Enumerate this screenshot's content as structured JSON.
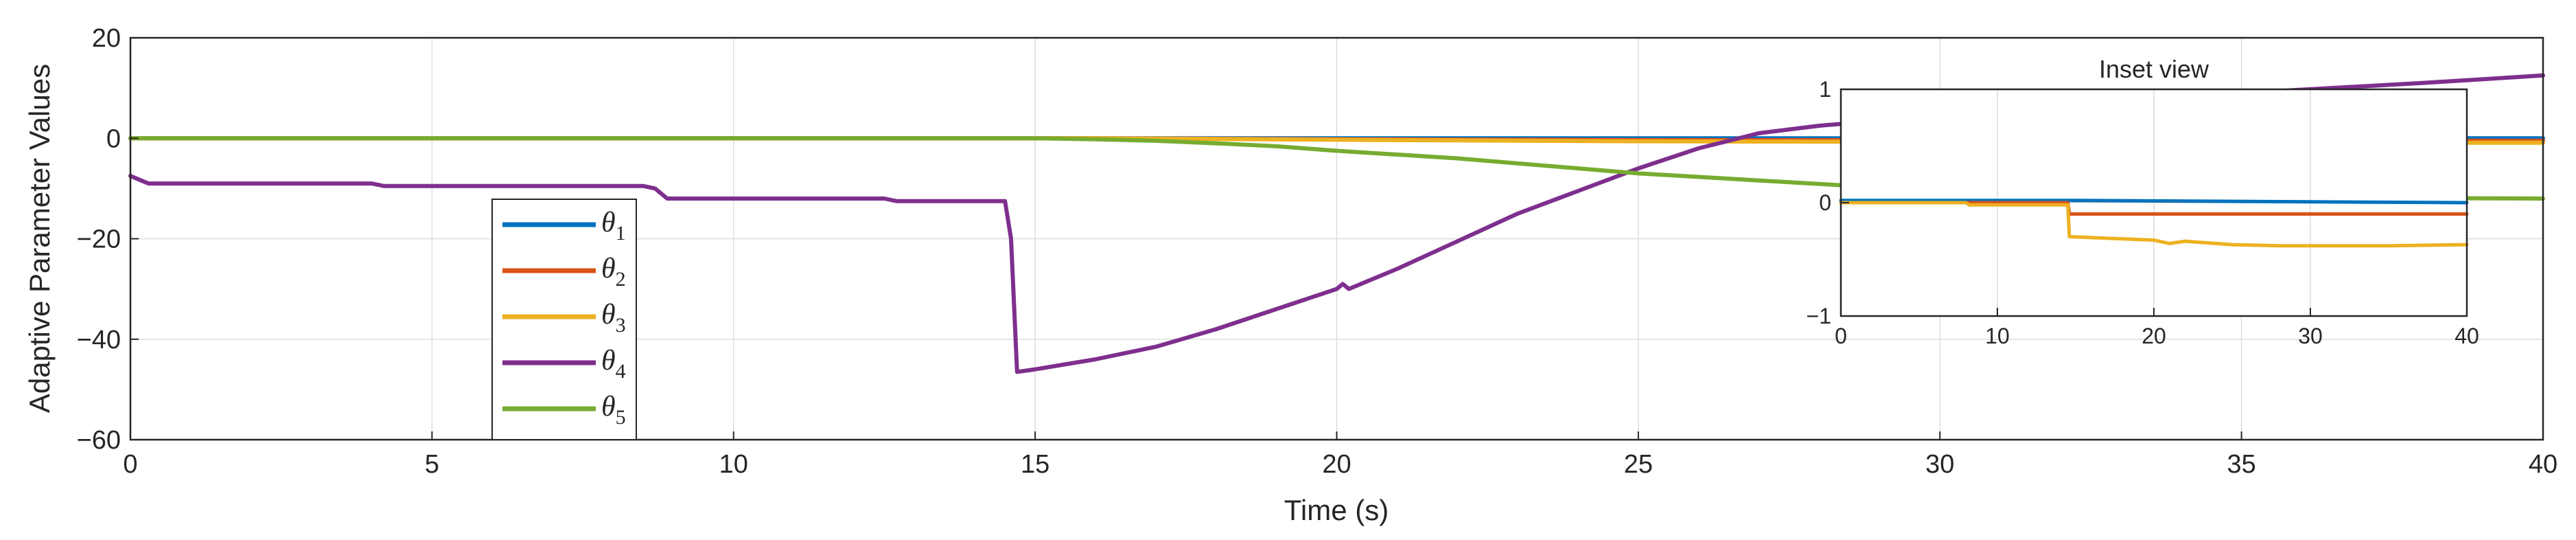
{
  "chart_data": [
    {
      "type": "line",
      "title": "",
      "xlabel": "Time (s)",
      "ylabel": "Adaptive Parameter Values",
      "xlim": [
        0,
        40
      ],
      "ylim": [
        -60,
        20
      ],
      "xticks": [
        0,
        5,
        10,
        15,
        20,
        25,
        30,
        35,
        40
      ],
      "yticks": [
        -60,
        -40,
        -20,
        0,
        20
      ],
      "xtick_labels": [
        "0",
        "5",
        "10",
        "15",
        "20",
        "25",
        "30",
        "35",
        "40"
      ],
      "ytick_labels": [
        "−60",
        "−40",
        "−20",
        "0",
        "20"
      ],
      "grid": true,
      "legend_position": "bottom-left",
      "series": [
        {
          "name": "θ1",
          "symbol": "θ",
          "sub": "1",
          "color": "#0072BD",
          "x": [
            0,
            40
          ],
          "y": [
            0,
            0
          ]
        },
        {
          "name": "θ2",
          "symbol": "θ",
          "sub": "2",
          "color": "#D95319",
          "x": [
            0,
            16,
            20,
            25,
            30,
            35,
            40
          ],
          "y": [
            0,
            0,
            -0.2,
            -0.35,
            -0.4,
            -0.45,
            -0.5
          ]
        },
        {
          "name": "θ3",
          "symbol": "θ",
          "sub": "3",
          "color": "#EDB120",
          "x": [
            0,
            16,
            20,
            25,
            30,
            35,
            40
          ],
          "y": [
            0,
            0,
            -0.3,
            -0.6,
            -0.75,
            -0.85,
            -0.9
          ]
        },
        {
          "name": "θ4",
          "symbol": "θ",
          "sub": "4",
          "color": "#7E2F8E",
          "x": [
            0,
            0.1,
            0.3,
            4.0,
            4.2,
            8.5,
            8.7,
            8.9,
            12.5,
            12.7,
            14.5,
            14.6,
            14.7,
            15,
            16,
            17,
            18,
            19,
            20,
            20.1,
            20.2,
            21,
            22,
            23,
            24,
            25,
            26,
            27,
            28,
            29,
            30,
            32,
            35,
            38,
            40
          ],
          "y": [
            -7.5,
            -8,
            -9,
            -9,
            -9.5,
            -9.5,
            -10,
            -12,
            -12,
            -12.5,
            -12.5,
            -20,
            -46.5,
            -46,
            -44,
            -41.5,
            -38,
            -34,
            -30,
            -29,
            -30,
            -26,
            -20.5,
            -15,
            -10.5,
            -6,
            -2,
            1,
            2.5,
            3.5,
            5,
            7,
            9,
            11,
            12.5
          ]
        },
        {
          "name": "θ5",
          "symbol": "θ",
          "sub": "5",
          "color": "#77AC30",
          "x": [
            0,
            15,
            16,
            17,
            18,
            19,
            20,
            22,
            25,
            30,
            35,
            40
          ],
          "y": [
            0,
            0,
            -0.2,
            -0.5,
            -1,
            -1.6,
            -2.5,
            -4,
            -7,
            -10.5,
            -11.8,
            -12
          ]
        }
      ]
    },
    {
      "type": "line",
      "title": "Inset view",
      "xlim": [
        0,
        40
      ],
      "ylim": [
        -1,
        1
      ],
      "xticks": [
        0,
        10,
        20,
        30,
        40
      ],
      "yticks": [
        -1,
        0,
        1
      ],
      "xtick_labels": [
        "0",
        "10",
        "20",
        "30",
        "40"
      ],
      "ytick_labels": [
        "−1",
        "0",
        "1"
      ],
      "grid": true,
      "series": [
        {
          "name": "θ1",
          "color": "#0072BD",
          "x": [
            0,
            14.5,
            40
          ],
          "y": [
            0.02,
            0.02,
            0.0
          ]
        },
        {
          "name": "θ2",
          "color": "#D95319",
          "x": [
            0,
            14.5,
            14.6,
            40
          ],
          "y": [
            0.0,
            0.0,
            -0.1,
            -0.1
          ]
        },
        {
          "name": "θ3",
          "color": "#EDB120",
          "x": [
            0,
            8,
            8.2,
            14.5,
            14.6,
            20,
            21,
            22,
            25,
            28,
            30,
            35,
            40
          ],
          "y": [
            0.0,
            0.0,
            -0.02,
            -0.02,
            -0.3,
            -0.33,
            -0.36,
            -0.34,
            -0.37,
            -0.38,
            -0.38,
            -0.38,
            -0.37
          ]
        }
      ]
    }
  ]
}
